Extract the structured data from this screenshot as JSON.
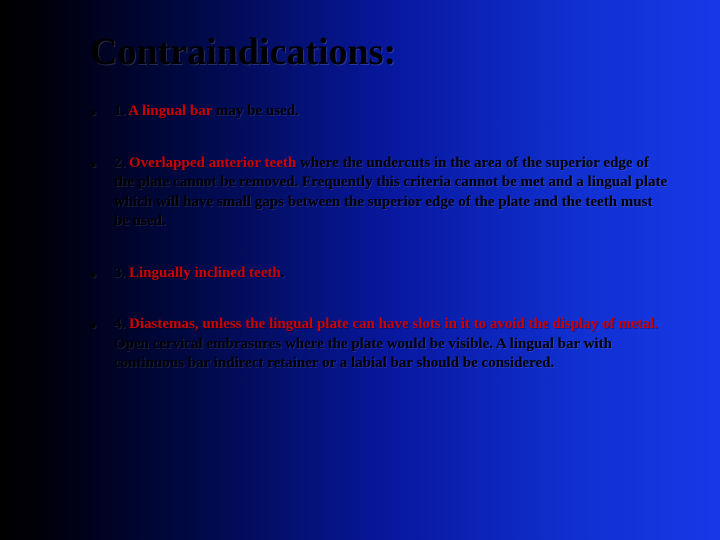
{
  "title": "Contraindications:",
  "items": [
    {
      "num": "1. ",
      "highlight": "A lingual bar",
      "rest": " may be used."
    },
    {
      "num": "2. ",
      "highlight": "Overlapped anterior teeth",
      "rest": " where the undercuts in the area of the superior edge of the plate cannot be removed. Frequently this criteria cannot be met and a lingual plate which will have small gaps between the superior edge of the plate and the teeth must be used."
    },
    {
      "num": "3. ",
      "highlight": "Lingually inclined teeth",
      "rest": "."
    },
    {
      "num": "4. ",
      "highlight": "Diastemas, unless the lingual plate can have slots in it to avoid the display of metal. ",
      "rest": "Open cervical embrasures where the plate would be visible. A lingual bar with continuous bar indirect retainer or a labial bar should be considered."
    }
  ]
}
